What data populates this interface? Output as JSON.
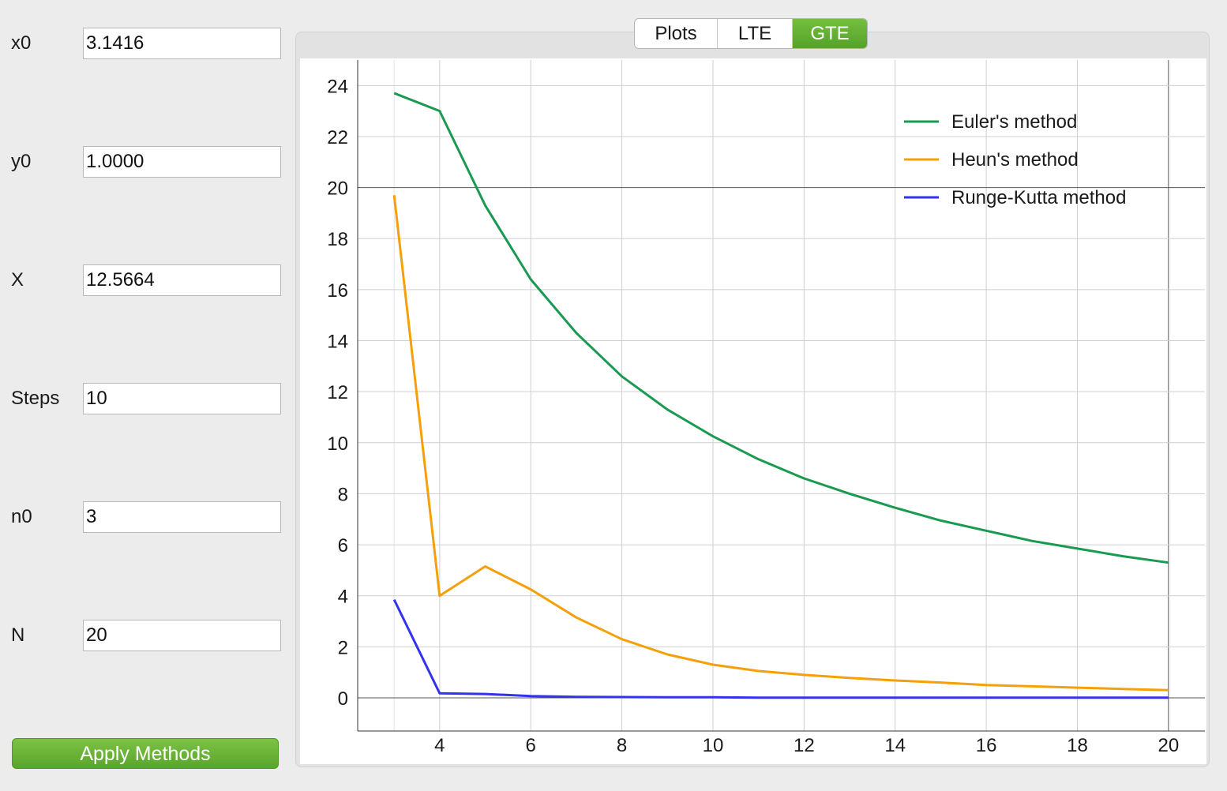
{
  "sidebar": {
    "fields": [
      {
        "label": "x0",
        "value": "3.1416"
      },
      {
        "label": "y0",
        "value": "1.0000"
      },
      {
        "label": "X",
        "value": "12.5664"
      },
      {
        "label": "Steps",
        "value": "10"
      },
      {
        "label": "n0",
        "value": "3"
      },
      {
        "label": "N",
        "value": "20"
      }
    ],
    "apply_label": "Apply Methods",
    "apply_color": "#5aa52b"
  },
  "tabs": {
    "items": [
      {
        "label": "Plots"
      },
      {
        "label": "LTE"
      },
      {
        "label": "GTE"
      }
    ],
    "active": "GTE"
  },
  "chart_data": {
    "type": "line",
    "x": [
      3,
      4,
      5,
      6,
      7,
      8,
      9,
      10,
      11,
      12,
      13,
      14,
      15,
      16,
      17,
      18,
      19,
      20
    ],
    "xlim": [
      2.2,
      20.8
    ],
    "ylim": [
      -1.3,
      25
    ],
    "x_ticks": [
      4,
      6,
      8,
      10,
      12,
      14,
      16,
      18,
      20
    ],
    "y_ticks": [
      0,
      2,
      4,
      6,
      8,
      10,
      12,
      14,
      16,
      18,
      20,
      22,
      24
    ],
    "grid": true,
    "legend_position": "top-right",
    "series": [
      {
        "name": "Euler's method",
        "color": "#1a9a50",
        "values": [
          23.7,
          23.0,
          19.3,
          16.4,
          14.3,
          12.6,
          11.3,
          10.25,
          9.35,
          8.6,
          8.0,
          7.45,
          6.95,
          6.55,
          6.15,
          5.85,
          5.55,
          5.3
        ]
      },
      {
        "name": "Heun's method",
        "color": "#f5a00a",
        "values": [
          19.7,
          4.0,
          5.15,
          4.25,
          3.15,
          2.3,
          1.7,
          1.3,
          1.05,
          0.9,
          0.78,
          0.68,
          0.6,
          0.5,
          0.45,
          0.4,
          0.35,
          0.3
        ]
      },
      {
        "name": "Runge-Kutta method",
        "color": "#3333ee",
        "values": [
          3.85,
          0.18,
          0.15,
          0.07,
          0.04,
          0.03,
          0.02,
          0.02,
          0.01,
          0.01,
          0.01,
          0.01,
          0.01,
          0.01,
          0.01,
          0.01,
          0.01,
          0.01
        ]
      }
    ]
  }
}
